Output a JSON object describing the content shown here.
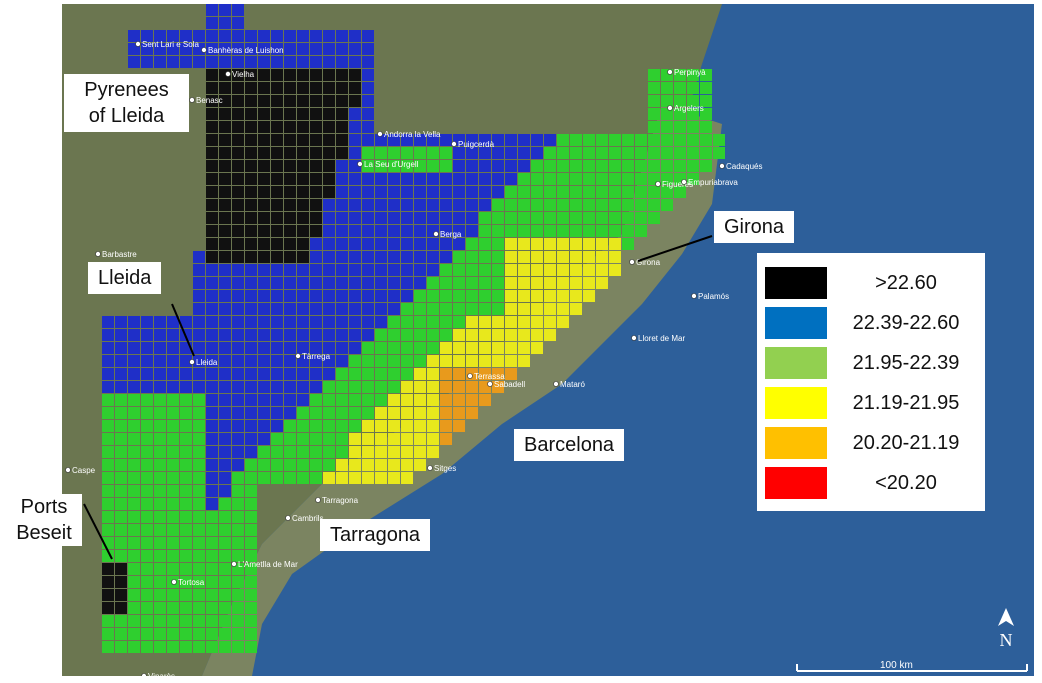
{
  "callouts": {
    "pyrenees": "Pyrenees\nof Lleida",
    "lleida": "Lleida",
    "ports_beseit": "Ports\nBeseit",
    "girona": "Girona",
    "barcelona": "Barcelona",
    "tarragona": "Tarragona"
  },
  "legend": [
    {
      "label": ">22.60",
      "color": "#000000"
    },
    {
      "label": "22.39-22.60",
      "color": "#0070c0"
    },
    {
      "label": "21.95-22.39",
      "color": "#92d050"
    },
    {
      "label": "21.19-21.95",
      "color": "#ffff00"
    },
    {
      "label": "20.20-21.19",
      "color": "#ffc000"
    },
    {
      "label": "<20.20",
      "color": "#ff0000"
    }
  ],
  "map_colors": {
    "sea": "#2d5f9a",
    "land": "#6e7a55",
    "black_class": "#111111",
    "blue_class": "#1f2fc8",
    "green_class": "#2fcf2f",
    "yellow_class": "#e8e81c",
    "orange_class": "#e89a1c",
    "red_class": "#e81c1c"
  },
  "place_names": [
    "Sent Lari e Sola",
    "Banhèras de Luishon",
    "Vielha",
    "Benasc",
    "Perpinyà",
    "Argelers",
    "Andorra la Vella",
    "Puigcerdà",
    "La Seu d'Urgell",
    "Cadaqués",
    "Figueres",
    "Empuriabrava",
    "Barbastre",
    "Berga",
    "Girona",
    "Palamós",
    "Lleida",
    "Tàrrega",
    "Lloret de Mar",
    "Terrassa",
    "Sabadell",
    "Mataró",
    "Caspe",
    "Sitges",
    "Tarragona",
    "Cambrils",
    "L'Ametlla de Mar",
    "Tortosa",
    "Vinaròs"
  ],
  "scale_bar": "100 km",
  "north_label": "N"
}
